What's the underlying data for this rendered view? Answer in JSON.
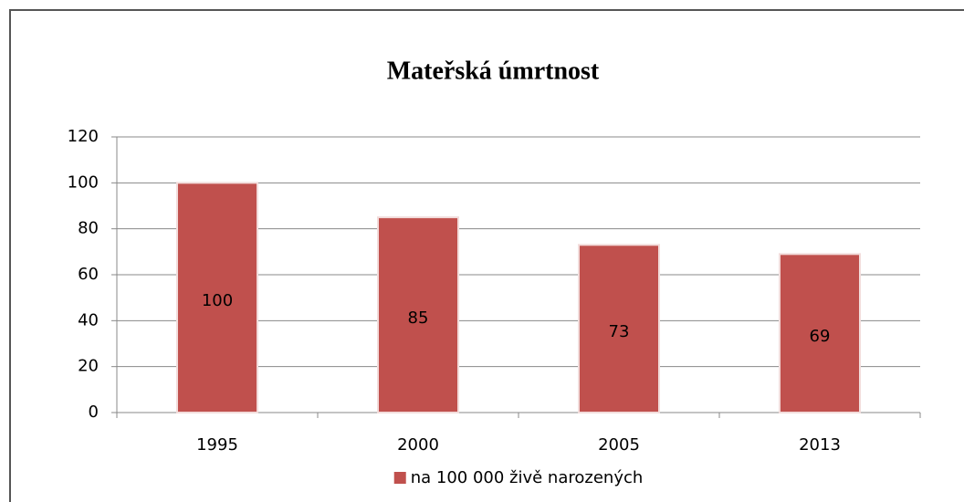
{
  "chart_data": {
    "type": "bar",
    "title": "Mateřská úmrtnost",
    "categories": [
      "1995",
      "2000",
      "2005",
      "2013"
    ],
    "series": [
      {
        "name": "na 100 000 živě narozených",
        "color": "#c0504d",
        "values": [
          100,
          85,
          73,
          69
        ]
      }
    ],
    "ylim": [
      0,
      120
    ],
    "yticks": [
      0,
      20,
      40,
      60,
      80,
      100,
      120
    ],
    "grid": true,
    "legend": "bottom"
  }
}
